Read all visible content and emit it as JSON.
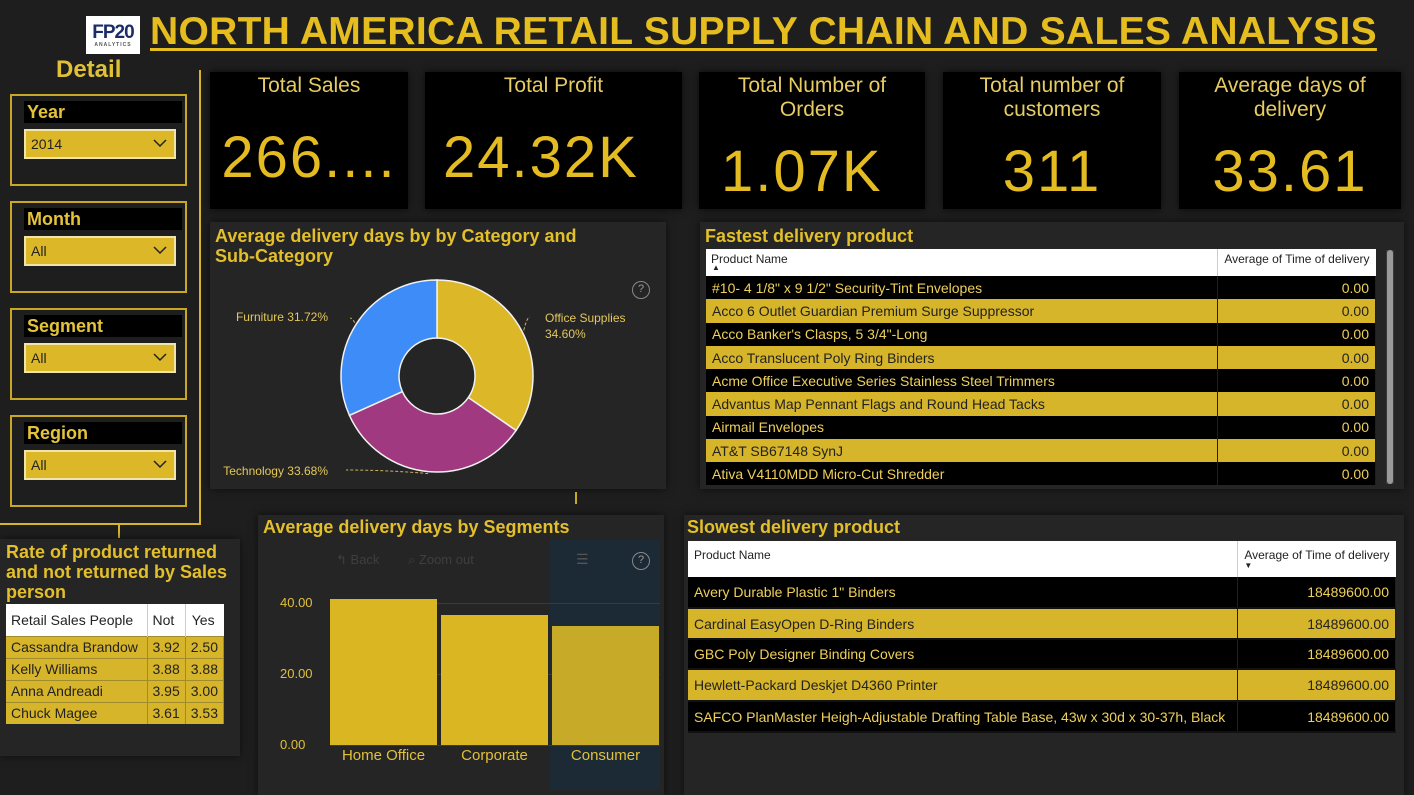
{
  "header": {
    "title": "NORTH AMERICA RETAIL SUPPLY CHAIN AND SALES ANALYSIS",
    "logo_text": "FP20",
    "logo_sub": "ANALYTICS"
  },
  "sidebar": {
    "title": "Detail",
    "slicers": [
      {
        "label": "Year",
        "value": "2014"
      },
      {
        "label": "Month",
        "value": "All"
      },
      {
        "label": "Segment",
        "value": "All"
      },
      {
        "label": "Region",
        "value": "All"
      }
    ]
  },
  "kpis": [
    {
      "title": "Total Sales",
      "value": "266...."
    },
    {
      "title": "Total Profit",
      "value": "24.32K"
    },
    {
      "title": "Total Number of Orders",
      "value": "1.07K"
    },
    {
      "title": "Total number of customers",
      "value": "311"
    },
    {
      "title": "Average days of delivery",
      "value": "33.61"
    }
  ],
  "donut": {
    "title": "Average delivery days by by Category and Sub-Category",
    "help": "?",
    "colors": {
      "Office Supplies": "#dcb829",
      "Technology": "#a0397f",
      "Furniture": "#3d8cf7"
    }
  },
  "chart_data": [
    {
      "type": "pie",
      "title": "Average delivery days by by Category and Sub-Category",
      "categories": [
        "Office Supplies",
        "Technology",
        "Furniture"
      ],
      "values": [
        34.6,
        33.68,
        31.72
      ],
      "labels": [
        "Office Supplies 34.60%",
        "Technology 33.68%",
        "Furniture 31.72%"
      ]
    },
    {
      "type": "bar",
      "title": "Average delivery days by Segments",
      "categories": [
        "Home Office",
        "Corporate",
        "Consumer"
      ],
      "values": [
        41,
        36.5,
        33.5
      ],
      "ylim": [
        0,
        45
      ],
      "yticks": [
        "0.00",
        "20.00",
        "40.00"
      ]
    }
  ],
  "bars": {
    "title": "Average delivery days by Segments",
    "toolbar": {
      "back": "Back",
      "zoom_out": "Zoom out",
      "help": "?"
    }
  },
  "fastest": {
    "title": "Fastest delivery product",
    "headers": [
      "Product Name",
      "Average of Time of delivery"
    ],
    "rows": [
      [
        "#10- 4 1/8\" x 9 1/2\" Security-Tint Envelopes",
        "0.00"
      ],
      [
        "Acco 6 Outlet Guardian Premium Surge Suppressor",
        "0.00"
      ],
      [
        "Acco Banker's Clasps, 5 3/4\"-Long",
        "0.00"
      ],
      [
        "Acco Translucent Poly Ring Binders",
        "0.00"
      ],
      [
        "Acme Office Executive Series Stainless Steel Trimmers",
        "0.00"
      ],
      [
        "Advantus Map Pennant Flags and Round Head Tacks",
        "0.00"
      ],
      [
        "Airmail Envelopes",
        "0.00"
      ],
      [
        "AT&T SB67148 SynJ",
        "0.00"
      ],
      [
        "Ativa V4110MDD Micro-Cut Shredder",
        "0.00"
      ]
    ]
  },
  "slowest": {
    "title": "Slowest delivery product",
    "headers": [
      "Product Name",
      "Average of Time of delivery"
    ],
    "rows": [
      [
        "Avery Durable Plastic 1\" Binders",
        "18489600.00"
      ],
      [
        "Cardinal EasyOpen D-Ring Binders",
        "18489600.00"
      ],
      [
        "GBC Poly Designer Binding Covers",
        "18489600.00"
      ],
      [
        "Hewlett-Packard Deskjet D4360 Printer",
        "18489600.00"
      ],
      [
        "SAFCO PlanMaster Heigh-Adjustable Drafting Table Base, 43w x 30d x 30-37h, Black",
        "18489600.00"
      ]
    ]
  },
  "returns": {
    "title": "Rate of product returned and not returned by Sales person",
    "headers": [
      "Retail Sales People",
      "Not",
      "Yes"
    ],
    "rows": [
      [
        "Cassandra Brandow",
        "3.92",
        "2.50"
      ],
      [
        "Kelly Williams",
        "3.88",
        "3.88"
      ],
      [
        "Anna Andreadi",
        "3.95",
        "3.00"
      ],
      [
        "Chuck Magee",
        "3.61",
        "3.53"
      ]
    ]
  }
}
